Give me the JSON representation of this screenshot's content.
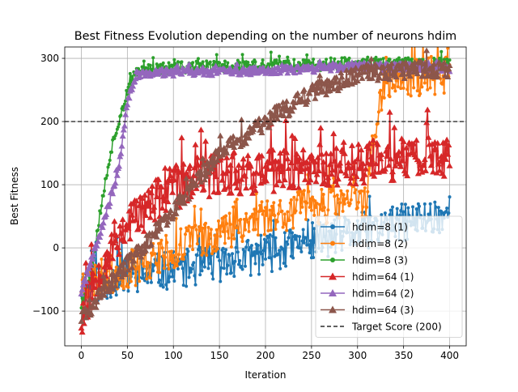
{
  "chart_data": {
    "type": "line",
    "title": "Best Fitness Evolution depending on the number of neurons hdim",
    "xlabel": "Iteration",
    "ylabel": "Best Fitness",
    "xlim": [
      -18,
      418
    ],
    "ylim": [
      -155,
      318
    ],
    "xticks": [
      0,
      50,
      100,
      150,
      200,
      250,
      300,
      350,
      400
    ],
    "yticks": [
      -100,
      0,
      100,
      200,
      300
    ],
    "grid": true,
    "legend_position": "lower right",
    "reference_line": {
      "name": "Target Score (200)",
      "y": 200,
      "color": "#000000",
      "style": "dashed"
    },
    "series": [
      {
        "name": "hdim=8 (1)",
        "color": "#1f77b4",
        "marker": "circle",
        "x_range": [
          0,
          400
        ],
        "noise": 30,
        "seed": 11,
        "anchors": [
          [
            0,
            -60
          ],
          [
            50,
            -45
          ],
          [
            100,
            -35
          ],
          [
            150,
            -25
          ],
          [
            200,
            -10
          ],
          [
            250,
            10
          ],
          [
            300,
            25
          ],
          [
            350,
            40
          ],
          [
            400,
            55
          ]
        ]
      },
      {
        "name": "hdim=8 (2)",
        "color": "#ff7f0e",
        "marker": "circle",
        "x_range": [
          0,
          400
        ],
        "noise": 30,
        "seed": 23,
        "anchors": [
          [
            0,
            -55
          ],
          [
            50,
            -35
          ],
          [
            100,
            -5
          ],
          [
            150,
            25
          ],
          [
            200,
            50
          ],
          [
            250,
            65
          ],
          [
            300,
            75
          ],
          [
            310,
            80
          ],
          [
            320,
            200
          ],
          [
            330,
            260
          ],
          [
            350,
            268
          ],
          [
            400,
            275
          ]
        ]
      },
      {
        "name": "hdim=8 (3)",
        "color": "#2ca02c",
        "marker": "circle",
        "x_range": [
          0,
          400
        ],
        "noise": 10,
        "seed": 37,
        "anchors": [
          [
            0,
            -90
          ],
          [
            10,
            -40
          ],
          [
            20,
            50
          ],
          [
            30,
            140
          ],
          [
            40,
            200
          ],
          [
            50,
            245
          ],
          [
            60,
            280
          ],
          [
            100,
            285
          ],
          [
            200,
            288
          ],
          [
            300,
            292
          ],
          [
            400,
            290
          ]
        ]
      },
      {
        "name": "hdim=64 (1)",
        "color": "#d62728",
        "marker": "triangle",
        "x_range": [
          0,
          400
        ],
        "noise": 35,
        "seed": 53,
        "anchors": [
          [
            0,
            -110
          ],
          [
            20,
            -30
          ],
          [
            50,
            40
          ],
          [
            100,
            95
          ],
          [
            150,
            120
          ],
          [
            200,
            120
          ],
          [
            250,
            130
          ],
          [
            300,
            135
          ],
          [
            350,
            140
          ],
          [
            400,
            145
          ]
        ]
      },
      {
        "name": "hdim=64 (2)",
        "color": "#9467bd",
        "marker": "triangle",
        "x_range": [
          0,
          400
        ],
        "noise": 6,
        "seed": 71,
        "anchors": [
          [
            0,
            -70
          ],
          [
            20,
            20
          ],
          [
            40,
            120
          ],
          [
            50,
            230
          ],
          [
            60,
            275
          ],
          [
            100,
            278
          ],
          [
            200,
            280
          ],
          [
            300,
            287
          ],
          [
            400,
            285
          ]
        ]
      },
      {
        "name": "hdim=64 (3)",
        "color": "#8c564b",
        "marker": "triangle",
        "x_range": [
          0,
          400
        ],
        "noise": 14,
        "seed": 89,
        "anchors": [
          [
            0,
            -110
          ],
          [
            30,
            -60
          ],
          [
            60,
            -10
          ],
          [
            100,
            60
          ],
          [
            150,
            150
          ],
          [
            200,
            200
          ],
          [
            250,
            245
          ],
          [
            300,
            275
          ],
          [
            350,
            282
          ],
          [
            400,
            282
          ]
        ]
      }
    ]
  }
}
